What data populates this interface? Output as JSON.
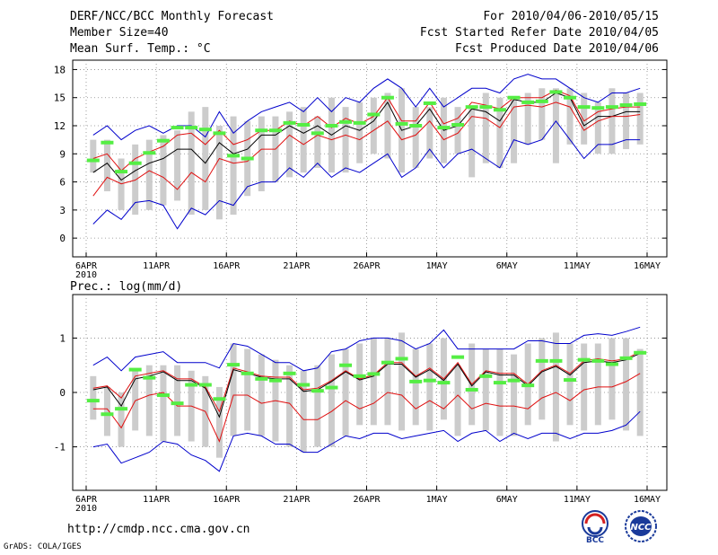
{
  "header": {
    "title": "DERF/NCC/BCC Monthly Forecast",
    "member_size": "Member Size=40",
    "variable": "Mean Surf. Temp.: °C",
    "period": "For 2010/04/06-2010/05/15",
    "start_date": "Fcst Started Refer Date 2010/04/05",
    "produced_date": "Fcst Produced Date 2010/04/06"
  },
  "footer": {
    "url": "http://cmdp.ncc.cma.gov.cn",
    "credit": "GrADS: COLA/IGES",
    "logo_left_text": "BCC",
    "logo_right_text": "NCC"
  },
  "colors": {
    "ensemble_mean": "#000000",
    "spread_band": "#e01010",
    "min_max_envelope": "#0000cc",
    "observation": "#55ee44",
    "member_range_bar": "#cccccc",
    "grid": "#888888"
  },
  "chart_data": [
    {
      "type": "line",
      "title": "Mean Surf. Temp.: °C",
      "xlabel": "",
      "ylabel": "",
      "xlim": [
        0,
        40
      ],
      "ylim": [
        -2,
        19
      ],
      "yticks": [
        0,
        3,
        6,
        9,
        12,
        15,
        18
      ],
      "xticks": [
        {
          "x": 0,
          "label": "6APR",
          "sub": "2010"
        },
        {
          "x": 5,
          "label": "11APR"
        },
        {
          "x": 10,
          "label": "16APR"
        },
        {
          "x": 15,
          "label": "21APR"
        },
        {
          "x": 20,
          "label": "26APR"
        },
        {
          "x": 25,
          "label": "1MAY"
        },
        {
          "x": 30,
          "label": "6MAY"
        },
        {
          "x": 35,
          "label": "11MAY"
        },
        {
          "x": 40,
          "label": "16MAY"
        }
      ],
      "grid": true,
      "range_bars": [
        [
          7,
          10.5
        ],
        [
          5,
          10.5
        ],
        [
          3,
          8.5
        ],
        [
          2.5,
          10
        ],
        [
          3,
          10.5
        ],
        [
          3.5,
          11
        ],
        [
          4,
          11.5
        ],
        [
          2.5,
          13.5
        ],
        [
          3,
          14
        ],
        [
          2,
          12
        ],
        [
          2.5,
          13
        ],
        [
          4.5,
          12.5
        ],
        [
          5,
          13
        ],
        [
          6,
          13
        ],
        [
          6.5,
          13.5
        ],
        [
          7,
          14
        ],
        [
          7.5,
          13
        ],
        [
          7,
          15
        ],
        [
          7,
          14
        ],
        [
          8,
          14.5
        ],
        [
          9,
          15
        ],
        [
          8.5,
          15.5
        ],
        [
          7,
          16
        ],
        [
          7.5,
          14
        ],
        [
          8.5,
          14
        ],
        [
          8,
          15
        ],
        [
          9,
          14
        ],
        [
          6.5,
          14
        ],
        [
          8,
          15.5
        ],
        [
          7.5,
          15
        ],
        [
          8,
          15
        ],
        [
          10,
          15.5
        ],
        [
          10.5,
          16
        ],
        [
          8,
          16
        ],
        [
          10,
          16
        ],
        [
          10,
          15.5
        ],
        [
          9,
          14.5
        ],
        [
          9,
          16
        ],
        [
          9.5,
          15.5
        ],
        [
          10,
          15.5
        ]
      ],
      "observations": [
        8.3,
        10.2,
        7.1,
        8.0,
        9.1,
        10.4,
        11.8,
        11.8,
        11.6,
        11.2,
        8.8,
        8.5,
        11.5,
        11.5,
        12.3,
        12.1,
        11.2,
        12.0,
        12.4,
        12.3,
        13.2,
        15.0,
        12.2,
        12.0,
        14.4,
        11.8,
        12.1,
        14.0,
        14.0,
        13.7,
        15.0,
        14.5,
        14.6,
        15.6,
        15.0,
        14.0,
        13.9,
        14.0,
        14.2,
        14.3
      ],
      "series": [
        {
          "name": "ensemble-max",
          "role": "envelope",
          "values": [
            11.0,
            12.0,
            10.5,
            11.5,
            12.0,
            11.2,
            12.0,
            12.0,
            10.8,
            13.5,
            11.2,
            12.5,
            13.5,
            14.0,
            14.5,
            13.5,
            15.0,
            13.5,
            15.0,
            14.5,
            16.0,
            17.0,
            16.0,
            14.0,
            16.0,
            14.0,
            15.0,
            16.0,
            16.0,
            15.5,
            17.0,
            17.5,
            17.0,
            17.0,
            16.0,
            15.0,
            14.5,
            15.5,
            15.5,
            16.0
          ]
        },
        {
          "name": "mean-plus-spread",
          "role": "spread",
          "values": [
            8.5,
            9.0,
            7.2,
            8.5,
            9.2,
            9.8,
            11.0,
            11.2,
            10.0,
            11.5,
            10.0,
            10.5,
            11.5,
            11.5,
            12.5,
            12.0,
            13.0,
            11.8,
            12.8,
            12.2,
            13.0,
            15.0,
            12.5,
            12.5,
            14.5,
            12.2,
            12.8,
            14.5,
            14.2,
            13.8,
            15.0,
            15.0,
            15.0,
            15.8,
            15.2,
            12.5,
            13.5,
            13.8,
            14.0,
            14.0
          ]
        },
        {
          "name": "ensemble-mean",
          "role": "mean",
          "values": [
            7.0,
            8.0,
            6.2,
            7.2,
            8.0,
            8.5,
            9.5,
            9.5,
            8.0,
            10.2,
            9.0,
            9.5,
            11.0,
            11.0,
            12.0,
            11.2,
            12.0,
            11.0,
            12.0,
            11.5,
            12.5,
            14.5,
            11.5,
            12.0,
            13.8,
            11.5,
            12.0,
            13.8,
            13.5,
            12.5,
            14.8,
            14.5,
            14.5,
            15.5,
            15.0,
            12.0,
            13.0,
            13.0,
            13.5,
            13.5
          ]
        },
        {
          "name": "mean-minus-spread",
          "role": "spread",
          "values": [
            4.5,
            6.5,
            5.8,
            6.2,
            7.2,
            6.5,
            5.2,
            7.0,
            6.0,
            8.5,
            8.0,
            8.2,
            9.5,
            9.5,
            11.0,
            10.0,
            11.0,
            10.5,
            11.0,
            10.5,
            11.5,
            12.5,
            10.5,
            11.0,
            12.5,
            10.5,
            11.2,
            13.0,
            12.8,
            11.8,
            14.0,
            14.2,
            14.0,
            14.5,
            14.0,
            11.5,
            12.5,
            13.0,
            13.0,
            13.2
          ]
        },
        {
          "name": "ensemble-min",
          "role": "envelope",
          "values": [
            1.5,
            3.0,
            2.0,
            3.8,
            4.0,
            3.5,
            1.0,
            3.2,
            2.5,
            4.0,
            3.5,
            5.5,
            6.0,
            6.0,
            7.5,
            6.5,
            8.0,
            6.5,
            7.5,
            7.0,
            8.0,
            9.0,
            6.5,
            7.5,
            9.5,
            7.5,
            9.0,
            9.5,
            8.5,
            7.5,
            10.5,
            10.0,
            10.5,
            12.5,
            10.5,
            8.5,
            10.0,
            10.0,
            10.5,
            10.5
          ]
        }
      ]
    },
    {
      "type": "line",
      "title": "Prec.: log(mm/d)",
      "xlabel": "",
      "ylabel": "",
      "xlim": [
        0,
        40
      ],
      "ylim": [
        -1.8,
        1.8
      ],
      "yticks": [
        -1,
        0,
        1
      ],
      "xticks": [
        {
          "x": 0,
          "label": "6APR",
          "sub": "2010"
        },
        {
          "x": 5,
          "label": "11APR"
        },
        {
          "x": 10,
          "label": "16APR"
        },
        {
          "x": 15,
          "label": "21APR"
        },
        {
          "x": 20,
          "label": "26APR"
        },
        {
          "x": 25,
          "label": "1MAY"
        },
        {
          "x": 30,
          "label": "6MAY"
        },
        {
          "x": 35,
          "label": "11MAY"
        },
        {
          "x": 40,
          "label": "16MAY"
        }
      ],
      "grid": true,
      "range_bars": [
        [
          -0.5,
          0.3
        ],
        [
          -0.8,
          0.1
        ],
        [
          -1.0,
          0.0
        ],
        [
          -0.7,
          0.4
        ],
        [
          -0.8,
          0.5
        ],
        [
          -0.9,
          0.5
        ],
        [
          -0.8,
          0.5
        ],
        [
          -0.9,
          0.4
        ],
        [
          -1.0,
          0.3
        ],
        [
          -1.2,
          0.1
        ],
        [
          -0.8,
          0.9
        ],
        [
          -0.7,
          0.8
        ],
        [
          -0.8,
          0.7
        ],
        [
          -0.9,
          0.6
        ],
        [
          -1.0,
          0.5
        ],
        [
          -1.1,
          0.4
        ],
        [
          -1.0,
          0.5
        ],
        [
          -1.0,
          0.7
        ],
        [
          -0.8,
          0.8
        ],
        [
          -0.6,
          0.9
        ],
        [
          -0.6,
          1.0
        ],
        [
          -0.6,
          1.0
        ],
        [
          -0.7,
          1.1
        ],
        [
          -0.6,
          0.8
        ],
        [
          -0.7,
          0.9
        ],
        [
          -0.5,
          1.0
        ],
        [
          -0.8,
          0.5
        ],
        [
          -0.6,
          0.9
        ],
        [
          -0.7,
          0.8
        ],
        [
          -0.8,
          0.8
        ],
        [
          -0.8,
          0.7
        ],
        [
          -0.6,
          0.9
        ],
        [
          -0.5,
          1.0
        ],
        [
          -0.9,
          1.1
        ],
        [
          -0.6,
          0.9
        ],
        [
          -0.7,
          0.9
        ],
        [
          -0.6,
          0.9
        ],
        [
          -0.5,
          1.0
        ],
        [
          -0.7,
          1.0
        ],
        [
          -0.8,
          0.8
        ]
      ],
      "observations": [
        -0.15,
        -0.4,
        -0.3,
        0.42,
        0.27,
        -0.05,
        -0.2,
        0.14,
        0.14,
        -0.12,
        0.51,
        0.35,
        0.25,
        0.22,
        0.35,
        0.14,
        0.03,
        0.09,
        0.5,
        0.3,
        0.34,
        0.55,
        0.62,
        0.2,
        0.22,
        0.18,
        0.65,
        0.05,
        0.3,
        0.18,
        0.22,
        0.13,
        0.58,
        0.58,
        0.23,
        0.6,
        0.58,
        0.52,
        0.63,
        0.73
      ],
      "series": [
        {
          "name": "ensemble-max",
          "role": "envelope",
          "values": [
            0.5,
            0.65,
            0.4,
            0.65,
            0.7,
            0.75,
            0.55,
            0.55,
            0.55,
            0.45,
            0.9,
            0.85,
            0.7,
            0.55,
            0.55,
            0.4,
            0.45,
            0.75,
            0.8,
            0.95,
            1.0,
            1.0,
            0.95,
            0.8,
            0.9,
            1.15,
            0.8,
            0.8,
            0.8,
            0.8,
            0.8,
            0.95,
            0.95,
            0.9,
            0.9,
            1.05,
            1.08,
            1.05,
            1.12,
            1.2
          ]
        },
        {
          "name": "mean-plus-spread",
          "role": "spread",
          "values": [
            0.08,
            0.12,
            -0.1,
            0.3,
            0.35,
            0.4,
            0.25,
            0.25,
            0.1,
            -0.35,
            0.45,
            0.38,
            0.3,
            0.28,
            0.28,
            0.05,
            0.08,
            0.22,
            0.4,
            0.25,
            0.32,
            0.55,
            0.55,
            0.3,
            0.45,
            0.25,
            0.55,
            0.15,
            0.4,
            0.35,
            0.35,
            0.15,
            0.4,
            0.5,
            0.35,
            0.58,
            0.62,
            0.58,
            0.62,
            0.75
          ]
        },
        {
          "name": "ensemble-mean",
          "role": "mean",
          "values": [
            0.05,
            0.1,
            -0.25,
            0.25,
            0.3,
            0.38,
            0.22,
            0.22,
            0.08,
            -0.45,
            0.42,
            0.35,
            0.28,
            0.25,
            0.25,
            0.02,
            0.05,
            0.2,
            0.38,
            0.23,
            0.3,
            0.52,
            0.52,
            0.28,
            0.42,
            0.22,
            0.52,
            0.12,
            0.38,
            0.32,
            0.32,
            0.12,
            0.38,
            0.48,
            0.32,
            0.55,
            0.58,
            0.55,
            0.6,
            0.72
          ]
        },
        {
          "name": "mean-minus-spread",
          "role": "spread",
          "values": [
            -0.3,
            -0.3,
            -0.65,
            -0.15,
            -0.05,
            0.0,
            -0.25,
            -0.25,
            -0.35,
            -0.9,
            -0.05,
            -0.05,
            -0.2,
            -0.15,
            -0.2,
            -0.5,
            -0.5,
            -0.35,
            -0.15,
            -0.3,
            -0.2,
            0.0,
            -0.05,
            -0.3,
            -0.15,
            -0.3,
            -0.05,
            -0.3,
            -0.2,
            -0.25,
            -0.25,
            -0.3,
            -0.1,
            0.0,
            -0.15,
            0.05,
            0.1,
            0.1,
            0.2,
            0.35
          ]
        },
        {
          "name": "ensemble-min",
          "role": "envelope",
          "values": [
            -1.0,
            -0.95,
            -1.3,
            -1.2,
            -1.1,
            -0.9,
            -0.95,
            -1.15,
            -1.25,
            -1.45,
            -0.8,
            -0.75,
            -0.8,
            -0.95,
            -0.95,
            -1.1,
            -1.1,
            -0.95,
            -0.8,
            -0.85,
            -0.75,
            -0.75,
            -0.85,
            -0.8,
            -0.75,
            -0.7,
            -0.9,
            -0.75,
            -0.7,
            -0.9,
            -0.75,
            -0.85,
            -0.75,
            -0.75,
            -0.85,
            -0.75,
            -0.75,
            -0.7,
            -0.6,
            -0.35
          ]
        }
      ]
    }
  ]
}
